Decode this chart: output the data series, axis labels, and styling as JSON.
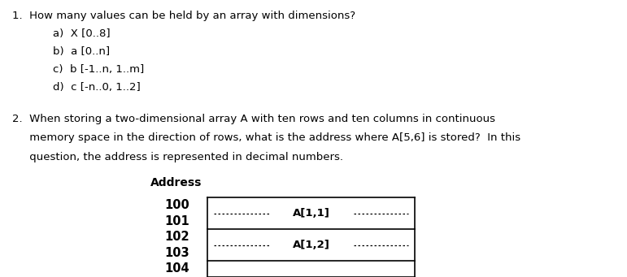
{
  "title1": "1.  How many values can be held by an array with dimensions?",
  "options": [
    "a)  X [0..8]",
    "b)  a [0..n]",
    "c)  b [-1..n, 1..m]",
    "d)  c [-n..0, 1..2]"
  ],
  "q2_line1": "2.  When storing a two-dimensional array A with ten rows and ten columns in continuous",
  "q2_line2": "     memory space in the direction of rows, what is the address where A[5,6] is stored?  In this",
  "q2_line3": "     question, the address is represented in decimal numbers.",
  "address_label": "Address",
  "addresses": [
    "100",
    "101",
    "102",
    "103",
    "104"
  ],
  "box_label1": "A[1,1]",
  "box_label2": "A[1,2]",
  "bg_color": "#ffffff",
  "text_color": "#000000",
  "font_size": 9.5,
  "font_size_addr": 10.5,
  "font_family": "DejaVu Sans"
}
